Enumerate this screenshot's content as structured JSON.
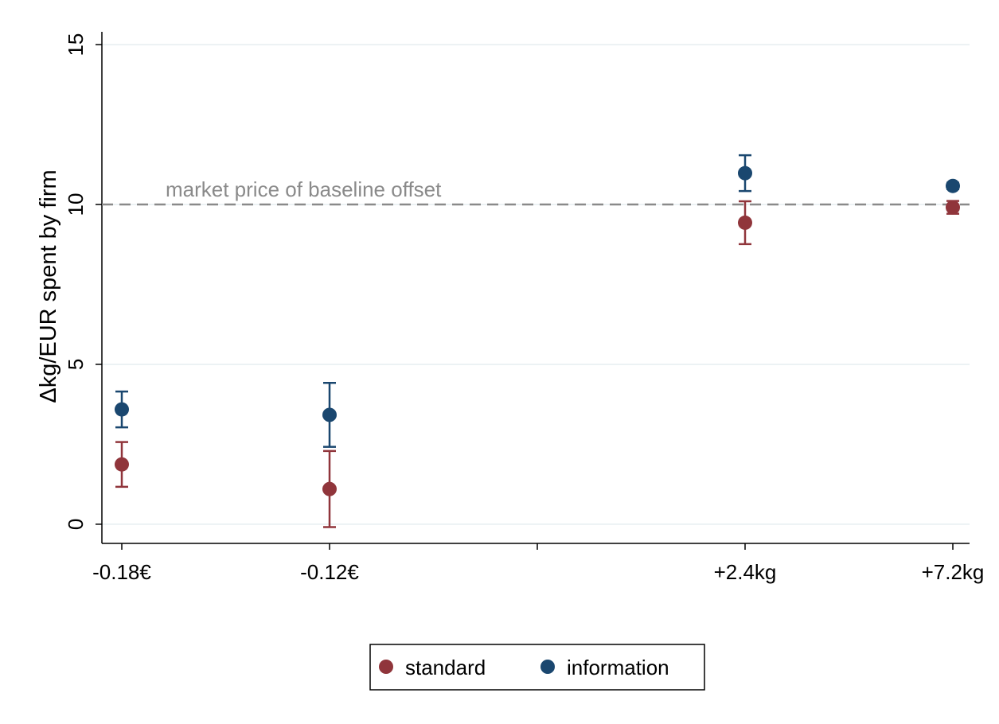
{
  "chart_data": {
    "type": "scatter",
    "y_label": "Δkg/EUR spent by firm",
    "categories": [
      "-0.18€",
      "-0.12€",
      null,
      "+2.4kg",
      "+7.2kg"
    ],
    "series": [
      {
        "name": "standard",
        "color": "#90353b",
        "values": [
          1.87,
          1.1,
          null,
          9.43,
          9.91
        ],
        "errors": [
          0.7,
          1.19,
          null,
          0.67,
          0.2
        ]
      },
      {
        "name": "information",
        "color": "#1a476f",
        "values": [
          3.59,
          3.42,
          null,
          10.98,
          10.58
        ],
        "errors": [
          0.56,
          1.0,
          null,
          0.56,
          0.1
        ]
      }
    ],
    "ylim": [
      -0.6,
      15.4
    ],
    "yticks": [
      0,
      5,
      10,
      15
    ],
    "grid": true,
    "reference_line": {
      "value": 10,
      "label": "market price of baseline offset"
    },
    "legend": "bottom"
  }
}
